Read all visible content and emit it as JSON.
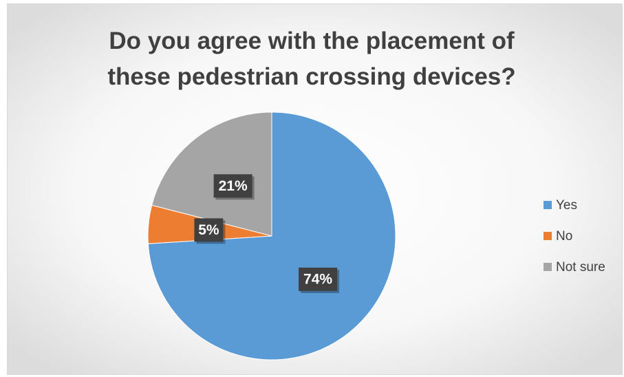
{
  "chart_data": {
    "type": "pie",
    "title": "Do you agree with the placement of these pedestrian crossing devices?",
    "categories": [
      "Yes",
      "No",
      "Not sure"
    ],
    "values": [
      74,
      5,
      21
    ],
    "value_labels": [
      "74%",
      "5%",
      "21%"
    ],
    "colors": [
      "#5b9bd5",
      "#ed7d31",
      "#a5a5a5"
    ],
    "legend": "right"
  }
}
